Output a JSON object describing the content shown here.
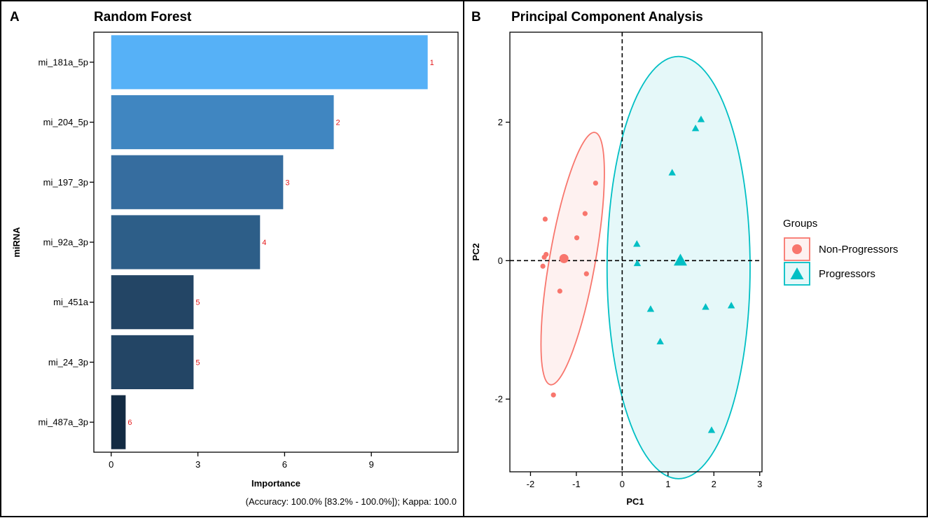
{
  "chart_data": [
    {
      "panel": "A",
      "type": "bar",
      "orientation": "horizontal",
      "title": "Random Forest",
      "xlabel": "Importance",
      "ylabel": "miRNA",
      "xlim": [
        -0.6,
        12.0
      ],
      "xticks": [
        0,
        3,
        6,
        9
      ],
      "grid": false,
      "categories": [
        "mi_181a_5p",
        "mi_204_5p",
        "mi_197_3p",
        "mi_92a_3p",
        "mi_451a",
        "mi_24_3p",
        "mi_487a_3p"
      ],
      "values": [
        10.95,
        7.7,
        5.95,
        5.15,
        2.85,
        2.85,
        0.5
      ],
      "ranks": [
        "1",
        "2",
        "3",
        "4",
        "5",
        "5",
        "6"
      ],
      "colors": [
        "#56b1f7",
        "#4086c1",
        "#366d9f",
        "#2d5e88",
        "#234565",
        "#234565",
        "#132b43"
      ],
      "rank_label_color": "#e41a1c",
      "footnote": "(Accuracy: 100.0% [83.2% - 100.0%]); Kappa: 100.0"
    },
    {
      "panel": "B",
      "type": "scatter",
      "title": "Principal Component Analysis",
      "xlabel": "PC1",
      "ylabel": "PC2",
      "xlim": [
        -2.45,
        3.05
      ],
      "ylim": [
        -3.05,
        3.3
      ],
      "xticks": [
        -2,
        -1,
        0,
        1,
        2,
        3
      ],
      "yticks": [
        -2,
        0,
        2
      ],
      "grid": false,
      "reference_lines": {
        "x": 0,
        "y": 0,
        "style": "dashed"
      },
      "legend": {
        "title": "Groups",
        "placement": "right"
      },
      "series": [
        {
          "name": "Non-Progressors",
          "marker": "circle",
          "color": "#f8766d",
          "points": [
            {
              "x": -1.68,
              "y": 0.6
            },
            {
              "x": -1.7,
              "y": 0.05
            },
            {
              "x": -1.66,
              "y": 0.09
            },
            {
              "x": -1.73,
              "y": -0.08
            },
            {
              "x": -0.99,
              "y": 0.33
            },
            {
              "x": -0.81,
              "y": 0.68
            },
            {
              "x": -0.58,
              "y": 1.12
            },
            {
              "x": -0.78,
              "y": -0.19
            },
            {
              "x": -1.36,
              "y": -0.44
            },
            {
              "x": -1.5,
              "y": -1.94
            }
          ],
          "centroid": {
            "x": -1.27,
            "y": 0.03
          },
          "ellipse": {
            "cx": -1.08,
            "cy": 0.03,
            "rx": 0.5,
            "ry": 1.85,
            "angle_deg": 10
          }
        },
        {
          "name": "Progressors",
          "marker": "triangle",
          "color": "#00bfc4",
          "points": [
            {
              "x": 1.72,
              "y": 2.04
            },
            {
              "x": 1.6,
              "y": 1.91
            },
            {
              "x": 1.09,
              "y": 1.27
            },
            {
              "x": 0.32,
              "y": 0.24
            },
            {
              "x": 0.33,
              "y": -0.04
            },
            {
              "x": 0.62,
              "y": -0.7
            },
            {
              "x": 1.82,
              "y": -0.67
            },
            {
              "x": 2.38,
              "y": -0.65
            },
            {
              "x": 0.83,
              "y": -1.17
            },
            {
              "x": 1.95,
              "y": -2.45
            }
          ],
          "centroid": {
            "x": 1.27,
            "y": 0.0
          },
          "ellipse": {
            "cx": 1.23,
            "cy": -0.1,
            "rx": 1.56,
            "ry": 3.05,
            "angle_deg": 0
          }
        }
      ]
    }
  ]
}
